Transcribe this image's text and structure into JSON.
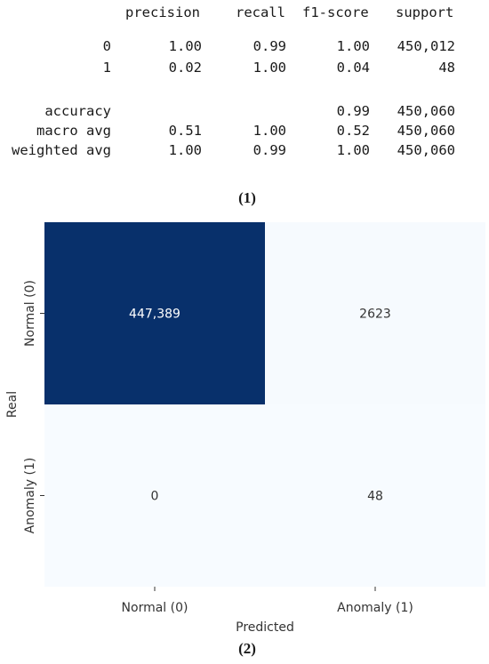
{
  "report": {
    "headers": [
      "precision",
      "recall",
      "f1-score",
      "support"
    ],
    "rows": [
      {
        "label": "0",
        "precision": "1.00",
        "recall": "0.99",
        "f1": "1.00",
        "support": "450,012"
      },
      {
        "label": "1",
        "precision": "0.02",
        "recall": "1.00",
        "f1": "0.04",
        "support": "48"
      },
      {
        "label": "accuracy",
        "precision": "",
        "recall": "",
        "f1": "0.99",
        "support": "450,060"
      },
      {
        "label": "macro avg",
        "precision": "0.51",
        "recall": "1.00",
        "f1": "0.52",
        "support": "450,060"
      },
      {
        "label": "weighted avg",
        "precision": "1.00",
        "recall": "0.99",
        "f1": "1.00",
        "support": "450,060"
      }
    ]
  },
  "captions": {
    "part1": "(1)",
    "part2": "(2)"
  },
  "chart_data": {
    "type": "heatmap",
    "xlabel": "Predicted",
    "ylabel": "Real",
    "x_categories": [
      "Normal (0)",
      "Anomaly (1)"
    ],
    "y_categories": [
      "Normal (0)",
      "Anomaly (1)"
    ],
    "values": [
      [
        447389,
        2623
      ],
      [
        0,
        48
      ]
    ],
    "cell_labels": [
      [
        "447,389",
        "2623"
      ],
      [
        "0",
        "48"
      ]
    ],
    "colormap": {
      "low": "#f7fbff",
      "high": "#08306b"
    },
    "text_colors": {
      "dark_cell": "#ffffff",
      "light_cell": "#333333"
    }
  }
}
